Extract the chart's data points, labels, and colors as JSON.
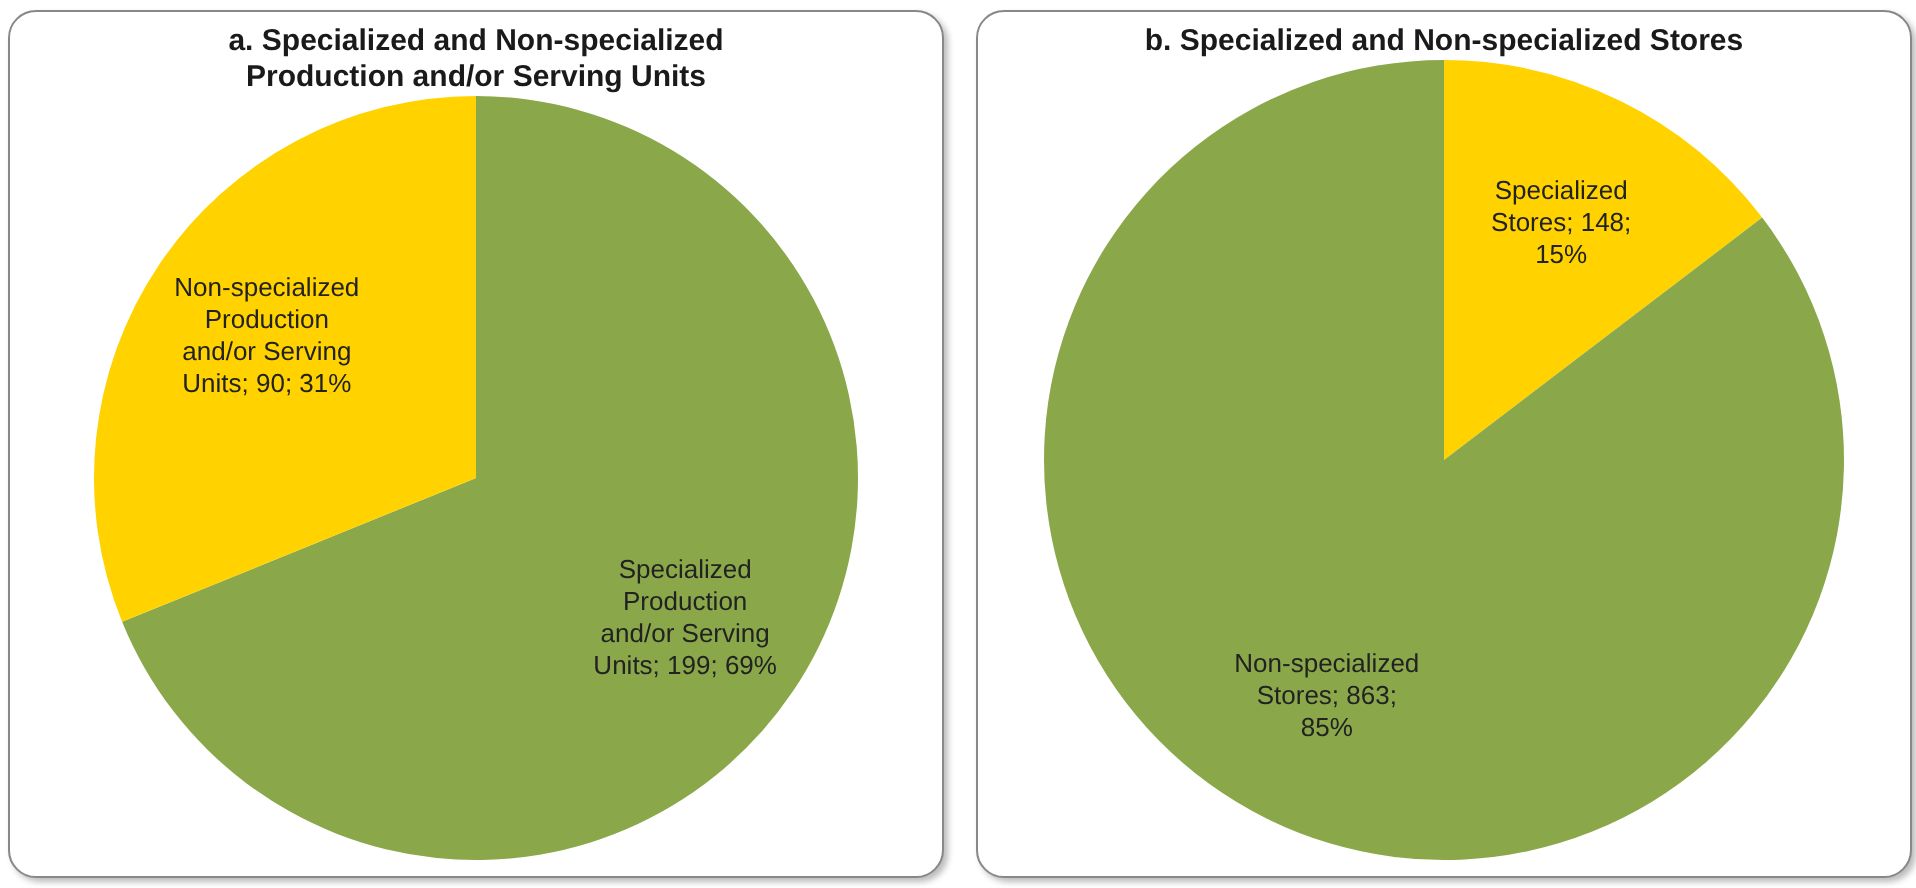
{
  "chart_data": [
    {
      "type": "pie",
      "title": "a. Specialized and Non-specialized Production and/or Serving Units",
      "categories": [
        "Specialized Production and/or Serving Units",
        "Non-specialized Production and/or Serving Units"
      ],
      "values": [
        199,
        90
      ],
      "colors": [
        "#8aa84a",
        "#ffd200"
      ],
      "value_labels": [
        "199; 69%",
        "90; 31%"
      ]
    },
    {
      "type": "pie",
      "title": "b. Specialized and Non-specialized Stores",
      "categories": [
        "Specialized Stores",
        "Non-specialized Stores"
      ],
      "values": [
        148,
        863
      ],
      "colors": [
        "#ffd200",
        "#8aa84a"
      ],
      "value_labels": [
        "148; 15%",
        "863; 85%"
      ]
    }
  ]
}
